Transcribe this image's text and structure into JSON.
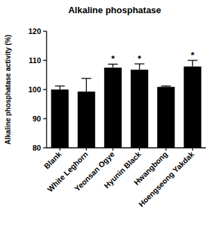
{
  "chart_data": {
    "type": "bar",
    "title": "Alkaline phosphatase",
    "y_label": "Alkaline phosphatase activity (%)",
    "categories": [
      "Blank",
      "White Leghorn",
      "Yeonsan Ogye",
      "Hyunin Black",
      "Hwangbong",
      "Hoengseong Yakdak"
    ],
    "values": [
      100.0,
      99.3,
      107.5,
      106.8,
      100.9,
      107.9
    ],
    "errors": [
      1.2,
      4.5,
      1.2,
      2.0,
      0.3,
      2.1
    ],
    "significance": [
      null,
      null,
      "*",
      "*",
      null,
      "*"
    ],
    "color": "#000000",
    "ylim": [
      80,
      120
    ],
    "yticks": [
      80,
      90,
      100,
      110,
      120
    ],
    "grid": false
  }
}
